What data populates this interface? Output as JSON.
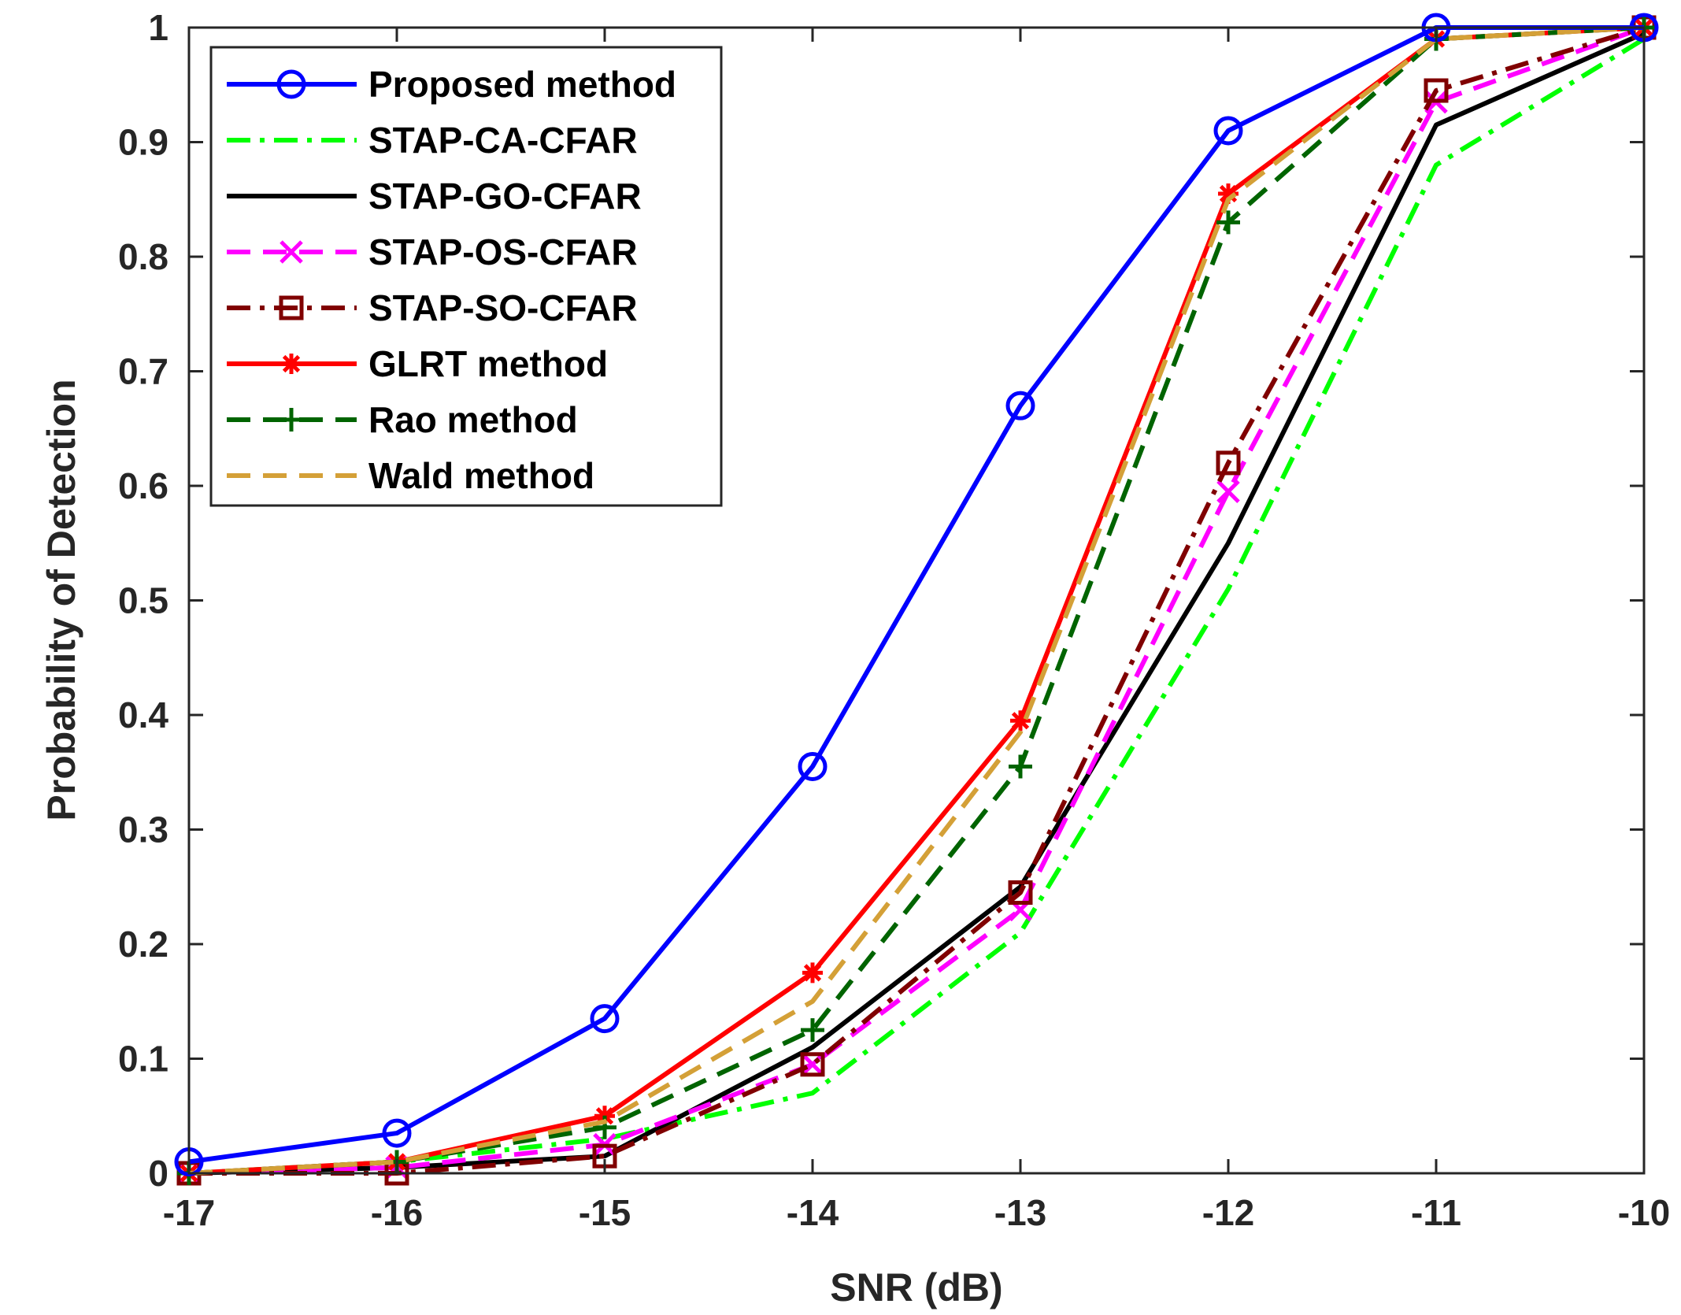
{
  "chart_data": {
    "type": "line",
    "title": "",
    "xlabel": "SNR (dB)",
    "ylabel": "Probability of Detection",
    "xlim": [
      -17,
      -10
    ],
    "ylim": [
      0,
      1
    ],
    "x": [
      -17,
      -16,
      -15,
      -14,
      -13,
      -12,
      -11,
      -10
    ],
    "xticks": [
      "-17",
      "-16",
      "-15",
      "-14",
      "-13",
      "-12",
      "-11",
      "-10"
    ],
    "yticks": [
      "0",
      "0.1",
      "0.2",
      "0.3",
      "0.4",
      "0.5",
      "0.6",
      "0.7",
      "0.8",
      "0.9",
      "1"
    ],
    "grid": false,
    "legend_position": "top-left",
    "series": [
      {
        "name": "Proposed method",
        "color": "#0000ff",
        "line": "solid",
        "marker": "circle",
        "values": [
          0.01,
          0.035,
          0.135,
          0.355,
          0.67,
          0.91,
          1.0,
          1.0
        ]
      },
      {
        "name": "STAP-CA-CFAR",
        "color": "#00ff00",
        "line": "dashdot",
        "marker": "none",
        "values": [
          0.0,
          0.01,
          0.03,
          0.07,
          0.21,
          0.51,
          0.88,
          0.99
        ]
      },
      {
        "name": "STAP-GO-CFAR",
        "color": "#000000",
        "line": "solid",
        "marker": "none",
        "values": [
          0.0,
          0.005,
          0.015,
          0.11,
          0.25,
          0.55,
          0.915,
          0.995
        ]
      },
      {
        "name": "STAP-OS-CFAR",
        "color": "#ff00ff",
        "line": "dashed",
        "marker": "x",
        "values": [
          0.0,
          0.005,
          0.025,
          0.095,
          0.23,
          0.595,
          0.935,
          1.0
        ]
      },
      {
        "name": "STAP-SO-CFAR",
        "color": "#800000",
        "line": "dashdot",
        "marker": "square",
        "values": [
          0.0,
          0.0,
          0.015,
          0.095,
          0.245,
          0.62,
          0.945,
          1.0
        ]
      },
      {
        "name": "GLRT method",
        "color": "#ff0000",
        "line": "solid",
        "marker": "asterisk",
        "values": [
          0.0,
          0.01,
          0.05,
          0.175,
          0.395,
          0.855,
          0.99,
          1.0
        ]
      },
      {
        "name": "Rao method",
        "color": "#006400",
        "line": "dashed",
        "marker": "plus",
        "values": [
          0.0,
          0.01,
          0.04,
          0.125,
          0.355,
          0.83,
          0.99,
          1.0
        ]
      },
      {
        "name": "Wald method",
        "color": "#d4a037",
        "line": "dashed",
        "marker": "none",
        "values": [
          0.0,
          0.01,
          0.045,
          0.15,
          0.385,
          0.85,
          0.99,
          1.0
        ]
      }
    ]
  }
}
